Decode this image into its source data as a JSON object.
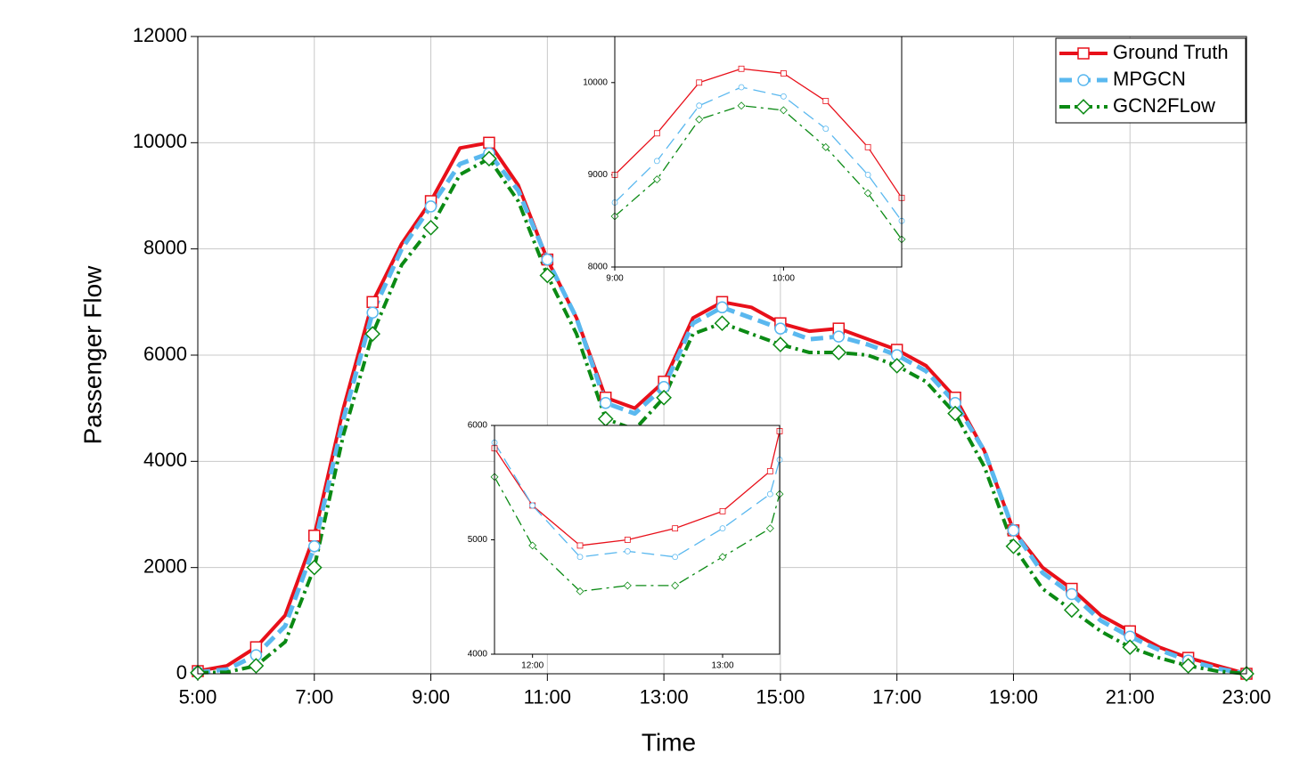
{
  "chart_data": [
    {
      "type": "line",
      "xlabel": "Time",
      "ylabel": "Passenger Flow",
      "grid": true,
      "legend": "upper right",
      "x": [
        5,
        5.5,
        6,
        6.5,
        7,
        7.5,
        8,
        8.5,
        9,
        9.5,
        10,
        10.5,
        11,
        11.5,
        12,
        12.5,
        13,
        13.5,
        14,
        14.5,
        15,
        15.5,
        16,
        16.5,
        17,
        17.5,
        18,
        18.5,
        19,
        19.5,
        20,
        20.5,
        21,
        21.5,
        22,
        22.5,
        23
      ],
      "xlim": [
        5,
        23
      ],
      "xticks": [
        {
          "value": 5,
          "label": "5:00"
        },
        {
          "value": 7,
          "label": "7:00"
        },
        {
          "value": 9,
          "label": "9:00"
        },
        {
          "value": 11,
          "label": "11:00"
        },
        {
          "value": 13,
          "label": "13:00"
        },
        {
          "value": 15,
          "label": "15:00"
        },
        {
          "value": 17,
          "label": "17:00"
        },
        {
          "value": 19,
          "label": "19:00"
        },
        {
          "value": 21,
          "label": "21:00"
        },
        {
          "value": 23,
          "label": "23:00"
        }
      ],
      "ylim": [
        0,
        12000
      ],
      "yticks": [
        0,
        2000,
        4000,
        6000,
        8000,
        10000,
        12000
      ],
      "series": [
        {
          "name": "Ground Truth",
          "color": "#e8101a",
          "marker": "square",
          "values": [
            50,
            150,
            500,
            1100,
            2600,
            5000,
            7000,
            8100,
            8900,
            9900,
            10000,
            9200,
            7800,
            6700,
            5200,
            5000,
            5500,
            6700,
            7000,
            6900,
            6600,
            6450,
            6500,
            6300,
            6100,
            5800,
            5200,
            4200,
            2700,
            2000,
            1600,
            1100,
            800,
            500,
            300,
            150,
            0
          ]
        },
        {
          "name": "MPGCN",
          "color": "#5ab8ef",
          "marker": "circle",
          "values": [
            30,
            80,
            350,
            900,
            2400,
            4800,
            6800,
            8000,
            8800,
            9600,
            9800,
            9100,
            7800,
            6700,
            5100,
            4900,
            5400,
            6600,
            6900,
            6700,
            6500,
            6300,
            6350,
            6200,
            6000,
            5700,
            5100,
            4200,
            2700,
            1900,
            1500,
            1000,
            700,
            450,
            250,
            100,
            0
          ]
        },
        {
          "name": "GCN2FLow",
          "color": "#0b8a14",
          "marker": "diamond",
          "values": [
            20,
            30,
            150,
            600,
            2000,
            4500,
            6400,
            7700,
            8400,
            9400,
            9700,
            8900,
            7500,
            6400,
            4800,
            4600,
            5200,
            6400,
            6600,
            6400,
            6200,
            6050,
            6050,
            6000,
            5800,
            5500,
            4900,
            3900,
            2400,
            1600,
            1200,
            800,
            500,
            300,
            150,
            50,
            0
          ]
        }
      ]
    },
    {
      "type": "line",
      "grid": false,
      "x": [
        9,
        9.25,
        9.5,
        9.75,
        10,
        10.25,
        10.5,
        10.7
      ],
      "xlim": [
        9,
        10.7
      ],
      "xticks": [
        {
          "value": 9,
          "label": "9:00"
        },
        {
          "value": 10,
          "label": "10:00"
        }
      ],
      "ylim": [
        8000,
        10500
      ],
      "yticks": [
        8000,
        9000,
        10000
      ],
      "series": [
        {
          "color": "#e8101a",
          "marker": "square",
          "values": [
            9000,
            9450,
            10000,
            10150,
            10100,
            9800,
            9300,
            8750
          ]
        },
        {
          "color": "#5ab8ef",
          "marker": "circle",
          "values": [
            8700,
            9150,
            9750,
            9950,
            9850,
            9500,
            9000,
            8500
          ]
        },
        {
          "color": "#0b8a14",
          "marker": "diamond",
          "values": [
            8550,
            8950,
            9600,
            9750,
            9700,
            9300,
            8800,
            8300
          ]
        }
      ]
    },
    {
      "type": "line",
      "grid": false,
      "x": [
        11.8,
        12,
        12.25,
        12.5,
        12.75,
        13,
        13.25,
        13.3
      ],
      "xlim": [
        11.8,
        13.3
      ],
      "xticks": [
        {
          "value": 12,
          "label": "12:00"
        },
        {
          "value": 13,
          "label": "13:00"
        }
      ],
      "ylim": [
        4000,
        6000
      ],
      "yticks": [
        4000,
        5000,
        6000
      ],
      "series": [
        {
          "color": "#e8101a",
          "marker": "square",
          "values": [
            5800,
            5300,
            4950,
            5000,
            5100,
            5250,
            5600,
            5950
          ]
        },
        {
          "color": "#5ab8ef",
          "marker": "circle",
          "values": [
            5850,
            5300,
            4850,
            4900,
            4850,
            5100,
            5400,
            5700
          ]
        },
        {
          "color": "#0b8a14",
          "marker": "diamond",
          "values": [
            5550,
            4950,
            4550,
            4600,
            4600,
            4850,
            5100,
            5400
          ]
        }
      ]
    }
  ]
}
